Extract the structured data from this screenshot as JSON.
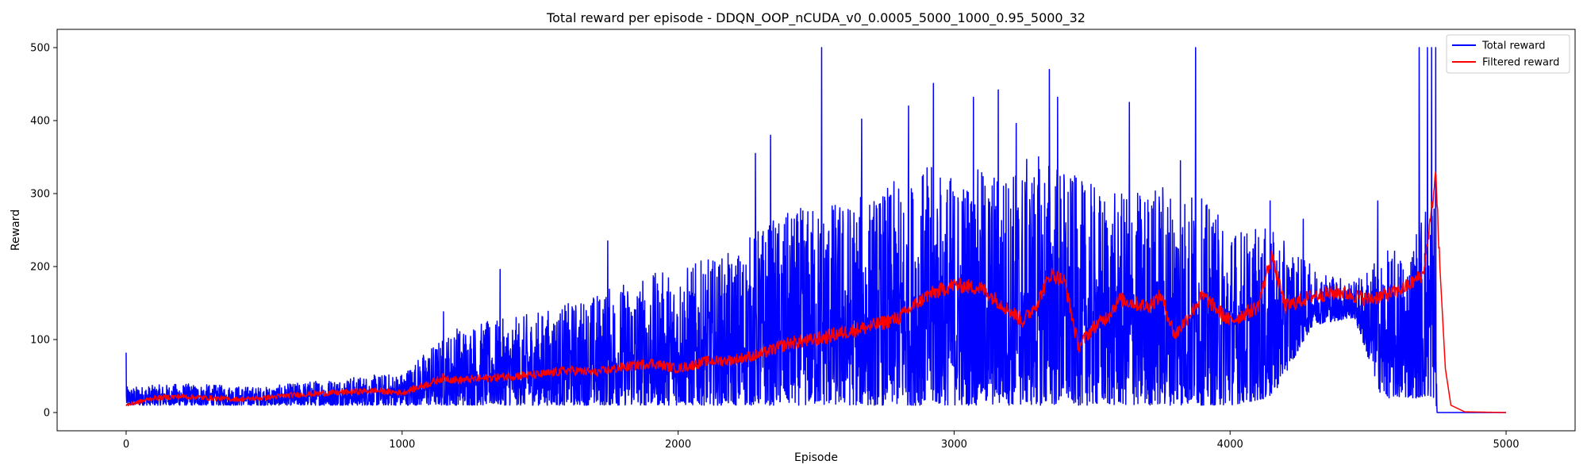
{
  "chart_data": {
    "type": "line",
    "title": "Total reward per episode - DDQN_OOP_nCUDA_v0_0.0005_5000_1000_0.95_5000_32",
    "xlabel": "Episode",
    "ylabel": "Reward",
    "xlim": [
      -250,
      5250
    ],
    "ylim": [
      -25,
      525
    ],
    "x_ticks": [
      0,
      1000,
      2000,
      3000,
      4000,
      5000
    ],
    "y_ticks": [
      0,
      100,
      200,
      300,
      400,
      500
    ],
    "grid": false,
    "legend_position": "top-right",
    "episodes": 5000,
    "series": [
      {
        "name": "Total reward",
        "color": "#0000ff",
        "style": "noisy",
        "x": [
          0,
          200,
          500,
          700,
          1000,
          1100,
          1200,
          1400,
          1600,
          1800,
          2000,
          2200,
          2300,
          2500,
          2700,
          2900,
          3000,
          3200,
          3350,
          3450,
          3600,
          3750,
          3850,
          4000,
          4150,
          4300,
          4450,
          4550,
          4650,
          4720,
          4740,
          4750,
          4760,
          4800,
          5000
        ],
        "envelope_low": [
          10,
          10,
          10,
          10,
          10,
          10,
          10,
          10,
          10,
          10,
          10,
          10,
          10,
          10,
          10,
          10,
          10,
          10,
          10,
          10,
          10,
          10,
          10,
          10,
          20,
          120,
          130,
          20,
          20,
          20,
          20,
          0,
          0,
          0,
          0
        ],
        "envelope_high": [
          35,
          40,
          35,
          45,
          55,
          90,
          120,
          130,
          150,
          180,
          200,
          220,
          260,
          290,
          300,
          340,
          330,
          340,
          360,
          320,
          300,
          320,
          310,
          260,
          250,
          200,
          180,
          220,
          230,
          320,
          310,
          0,
          0,
          0,
          0
        ],
        "spikes": [
          [
            0,
            82
          ],
          [
            1150,
            138
          ],
          [
            1355,
            196
          ],
          [
            1745,
            235
          ],
          [
            2280,
            355
          ],
          [
            2335,
            380
          ],
          [
            2520,
            500
          ],
          [
            2665,
            402
          ],
          [
            2835,
            420
          ],
          [
            2925,
            451
          ],
          [
            3070,
            432
          ],
          [
            3160,
            442
          ],
          [
            3225,
            396
          ],
          [
            3345,
            470
          ],
          [
            3375,
            432
          ],
          [
            3635,
            425
          ],
          [
            3820,
            345
          ],
          [
            3875,
            500
          ],
          [
            4145,
            290
          ],
          [
            4265,
            265
          ],
          [
            4535,
            290
          ],
          [
            4685,
            500
          ],
          [
            4715,
            500
          ],
          [
            4730,
            500
          ],
          [
            4745,
            500
          ]
        ]
      },
      {
        "name": "Filtered reward",
        "color": "#ff0000",
        "style": "smooth",
        "x": [
          0,
          100,
          200,
          300,
          400,
          500,
          600,
          700,
          800,
          900,
          1000,
          1100,
          1150,
          1200,
          1300,
          1400,
          1500,
          1600,
          1700,
          1800,
          1900,
          2000,
          2100,
          2200,
          2300,
          2400,
          2500,
          2600,
          2700,
          2800,
          2900,
          3000,
          3100,
          3200,
          3250,
          3300,
          3350,
          3400,
          3450,
          3500,
          3550,
          3600,
          3700,
          3750,
          3800,
          3900,
          4000,
          4100,
          4150,
          4200,
          4300,
          4400,
          4500,
          4600,
          4650,
          4700,
          4730,
          4745,
          4760,
          4780,
          4800,
          4850,
          5000
        ],
        "y": [
          10,
          20,
          22,
          20,
          18,
          20,
          24,
          26,
          28,
          30,
          27,
          40,
          48,
          44,
          47,
          50,
          52,
          58,
          55,
          62,
          68,
          60,
          70,
          72,
          80,
          95,
          100,
          110,
          118,
          130,
          160,
          175,
          170,
          140,
          125,
          150,
          190,
          180,
          90,
          115,
          130,
          155,
          145,
          160,
          105,
          160,
          125,
          145,
          215,
          145,
          160,
          165,
          155,
          165,
          175,
          190,
          275,
          330,
          200,
          60,
          10,
          1,
          0
        ]
      }
    ]
  }
}
